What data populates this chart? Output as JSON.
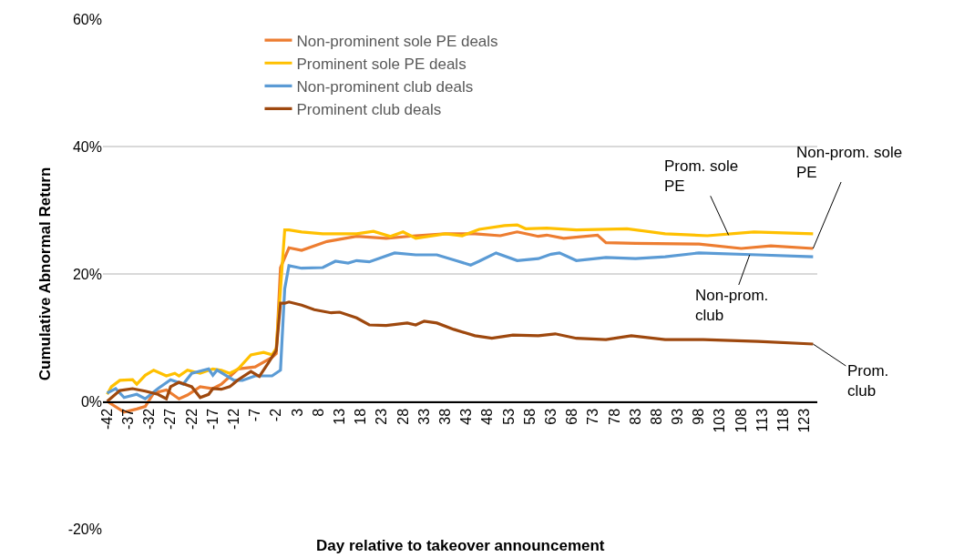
{
  "chart_data": {
    "type": "line",
    "xlabel": "Day relative to takeover announcement",
    "ylabel": "Cumulative Abnormal Return",
    "xlim": [
      -43,
      126
    ],
    "xticks": [
      -42,
      -37,
      -32,
      -27,
      -22,
      -17,
      -12,
      -7,
      -2,
      3,
      8,
      13,
      18,
      23,
      28,
      33,
      38,
      43,
      48,
      53,
      58,
      63,
      68,
      73,
      78,
      83,
      88,
      93,
      98,
      103,
      108,
      113,
      118,
      123
    ],
    "ylim": [
      -20,
      60
    ],
    "yticks": [
      {
        "value": -20,
        "label": "-20%"
      },
      {
        "value": 0,
        "label": "0%"
      },
      {
        "value": 20,
        "label": "20%"
      },
      {
        "value": 40,
        "label": "40%"
      },
      {
        "value": 60,
        "label": "60%"
      }
    ],
    "grid": "y",
    "legend": "top",
    "marker": "none",
    "line_style": "solid",
    "series": [
      {
        "name": "Non-prominent sole PE deals",
        "color": "#ed7d31",
        "x": [
          -42,
          -38,
          -35,
          -33,
          -31,
          -28,
          -25,
          -23,
          -20,
          -17,
          -15,
          -11,
          -7,
          -3,
          -2,
          -1,
          1,
          4,
          10,
          17,
          24,
          31,
          38,
          45,
          51,
          55,
          60,
          62,
          66,
          74,
          76,
          83,
          98,
          108,
          115,
          125
        ],
        "values": [
          0,
          -1.7,
          -1.2,
          -0.8,
          1.3,
          1.8,
          0.4,
          1,
          2.3,
          2,
          2.7,
          5.1,
          5.4,
          6.9,
          7.5,
          21,
          24.1,
          23.7,
          25.1,
          25.9,
          25.6,
          26,
          26.3,
          26.3,
          26,
          26.6,
          25.9,
          26.1,
          25.6,
          26.1,
          24.9,
          24.8,
          24.7,
          24,
          24.4,
          24
        ]
      },
      {
        "name": "Prominent sole PE deals",
        "color": "#ffc000",
        "x": [
          -42,
          -41,
          -39,
          -36,
          -35,
          -33,
          -31,
          -28,
          -26,
          -25,
          -23,
          -20,
          -17,
          -15,
          -13,
          -11,
          -8,
          -5,
          -3,
          -2,
          0,
          1,
          4,
          9,
          17,
          21,
          25,
          28,
          31,
          38,
          42,
          46,
          52,
          55,
          57,
          62,
          69,
          81,
          90,
          100,
          111,
          125
        ],
        "values": [
          1.1,
          2.3,
          3.3,
          3.4,
          2.7,
          4.1,
          4.9,
          4,
          4.4,
          4,
          4.9,
          4.4,
          5.1,
          4.9,
          4.4,
          5.1,
          7.3,
          7.7,
          7.3,
          8.3,
          26.9,
          26.9,
          26.6,
          26.3,
          26.3,
          26.7,
          25.9,
          26.6,
          25.6,
          26.3,
          26,
          27,
          27.6,
          27.7,
          27.1,
          27.2,
          26.9,
          27.1,
          26.3,
          26,
          26.6,
          26.3
        ]
      },
      {
        "name": "Non-prominent club deals",
        "color": "#5b9bd5",
        "x": [
          -42,
          -40,
          -38,
          -35,
          -33,
          -30,
          -27,
          -24,
          -22,
          -18,
          -17,
          -16,
          -12,
          -10,
          -7,
          -3,
          -1,
          0,
          1,
          4,
          9,
          12,
          15,
          17,
          20,
          26,
          31,
          36,
          41,
          44,
          46,
          50,
          55,
          60,
          63,
          65,
          69,
          76,
          83,
          90,
          98,
          112,
          125
        ],
        "values": [
          1.3,
          2,
          0.6,
          1.1,
          0.4,
          2,
          3.4,
          2.7,
          4.4,
          5.1,
          4.1,
          4.9,
          3.3,
          3.3,
          4,
          4,
          4.9,
          17.7,
          21.3,
          20.9,
          21,
          22,
          21.7,
          22.1,
          21.9,
          23.3,
          23,
          23,
          22,
          21.4,
          22,
          23.3,
          22.1,
          22.4,
          23.1,
          23.3,
          22.1,
          22.6,
          22.4,
          22.7,
          23.3,
          23,
          22.7
        ]
      },
      {
        "name": "Prominent club deals",
        "color": "#9e480e",
        "x": [
          -42,
          -39,
          -36,
          -33,
          -30,
          -28,
          -27,
          -25,
          -22,
          -20,
          -18,
          -17,
          -15,
          -13,
          -11,
          -8,
          -6,
          -4,
          -2,
          -1,
          0,
          1,
          4,
          7,
          11,
          13,
          17,
          20,
          24,
          29,
          31,
          33,
          36,
          40,
          42,
          45,
          49,
          54,
          60,
          64,
          69,
          76,
          82,
          90,
          99,
          112,
          125
        ],
        "values": [
          0,
          1.7,
          2,
          1.6,
          1.1,
          0.4,
          2.3,
          3,
          2.3,
          0.6,
          1.1,
          2,
          1.9,
          2.3,
          3.4,
          4.7,
          3.9,
          5.9,
          8,
          15.4,
          15.4,
          15.6,
          15.1,
          14.4,
          13.9,
          14,
          13.1,
          12,
          11.9,
          12.3,
          12,
          12.6,
          12.3,
          11.3,
          10.9,
          10.3,
          9.9,
          10.4,
          10.3,
          10.6,
          9.9,
          9.7,
          10.3,
          9.7,
          9.7,
          9.4,
          9
        ]
      }
    ],
    "annotations": [
      {
        "text": "Non-prom. sole PE",
        "x": 125,
        "y": 24
      },
      {
        "text": "Prom. sole PE",
        "x": 105,
        "y": 26.1
      },
      {
        "text": "Non-prom. club",
        "x": 110,
        "y": 23
      },
      {
        "text": "Prom. club",
        "x": 125,
        "y": 9
      }
    ]
  }
}
